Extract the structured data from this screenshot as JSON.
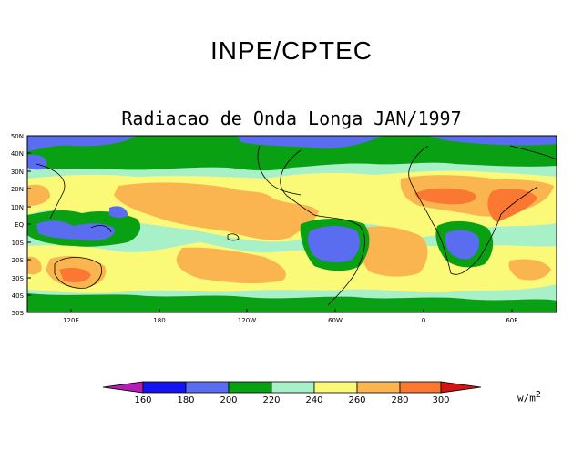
{
  "title": "INPE/CPTEC",
  "subtitle": "Radiacao de Onda Longa JAN/1997",
  "lat_labels": [
    "50N",
    "40N",
    "30N",
    "20N",
    "10N",
    "EQ",
    "10S",
    "20S",
    "30S",
    "40S",
    "50S"
  ],
  "lon_labels": [
    "120E",
    "180",
    "120W",
    "60W",
    "0",
    "60E"
  ],
  "colorbar": {
    "ticks": [
      "160",
      "180",
      "200",
      "220",
      "240",
      "260",
      "280",
      "300"
    ],
    "colors": [
      "#b21fb2",
      "#1414f0",
      "#5a6cf0",
      "#0aa014",
      "#a8f0c8",
      "#fafa78",
      "#fab450",
      "#fa7832",
      "#d21414"
    ],
    "unit": "w/m",
    "unit_exp": "2"
  }
}
